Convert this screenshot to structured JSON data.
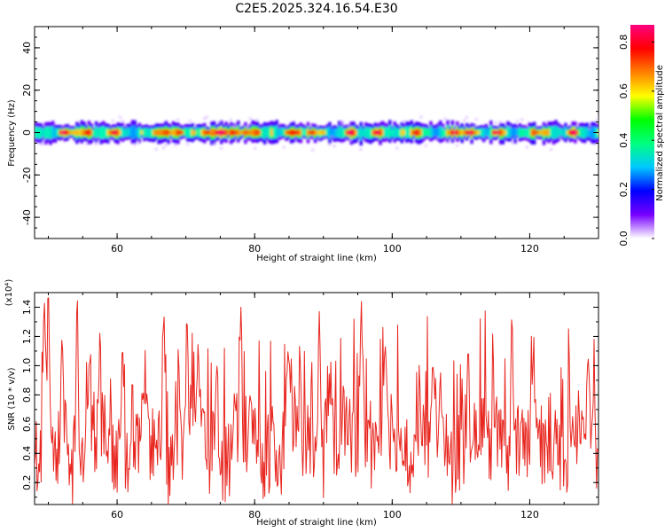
{
  "title": "C2E5.2025.324.16.54.E30",
  "chart_data": [
    {
      "type": "heatmap",
      "xlabel": "Height of straight line (km)",
      "ylabel": "Frequency (Hz)",
      "xlim": [
        48,
        130
      ],
      "ylim": [
        -50,
        50
      ],
      "xticks": [
        60,
        80,
        100,
        120
      ],
      "yticks": [
        -40,
        -20,
        0,
        20,
        40
      ],
      "band": {
        "center_hz": 0,
        "half_width_hz": 4
      },
      "peaks_km": [
        52,
        55,
        59,
        66,
        69,
        73,
        75,
        77,
        80,
        85,
        88,
        94,
        98,
        103,
        109,
        111,
        115,
        121,
        126
      ],
      "colorbar": {
        "label": "Normalized spectral amplitude",
        "range": [
          0.0,
          0.87
        ],
        "ticks": [
          "0.0",
          "0.2",
          "0.4",
          "0.6",
          "0.8"
        ],
        "colors": [
          "#ffffff",
          "#7700ff",
          "#0000ff",
          "#00c8ff",
          "#00ff80",
          "#00ff00",
          "#ffff00",
          "#ff8000",
          "#ff0000",
          "#ff0080"
        ]
      }
    },
    {
      "type": "line",
      "xlabel": "Height of straight line (km)",
      "ylabel": "SNR (10 * v/v)",
      "yscale_label": "(x10⁴)",
      "xlim": [
        48,
        130
      ],
      "ylim": [
        0.05,
        1.5
      ],
      "xticks": [
        60,
        80,
        100,
        120
      ],
      "yticks": [
        "0.2",
        "0.4",
        "0.6",
        "0.8",
        "1.0",
        "1.2",
        "1.4"
      ],
      "color": "#e8261f",
      "peaks": [
        {
          "x": 49.4,
          "y": 1.45
        },
        {
          "x": 50.0,
          "y": 1.5
        },
        {
          "x": 52.0,
          "y": 1.2
        },
        {
          "x": 54.2,
          "y": 1.48
        },
        {
          "x": 56.0,
          "y": 1.05
        },
        {
          "x": 60.8,
          "y": 1.1
        },
        {
          "x": 66.8,
          "y": 1.37
        },
        {
          "x": 70.2,
          "y": 1.28
        },
        {
          "x": 74.5,
          "y": 1.0
        },
        {
          "x": 78.0,
          "y": 1.4
        },
        {
          "x": 85.0,
          "y": 1.05
        },
        {
          "x": 89.4,
          "y": 1.37
        },
        {
          "x": 95.5,
          "y": 1.45
        },
        {
          "x": 99.0,
          "y": 1.13
        },
        {
          "x": 106.0,
          "y": 1.0
        },
        {
          "x": 111.0,
          "y": 1.08
        },
        {
          "x": 117.4,
          "y": 1.35
        },
        {
          "x": 128.5,
          "y": 1.05
        }
      ]
    }
  ]
}
